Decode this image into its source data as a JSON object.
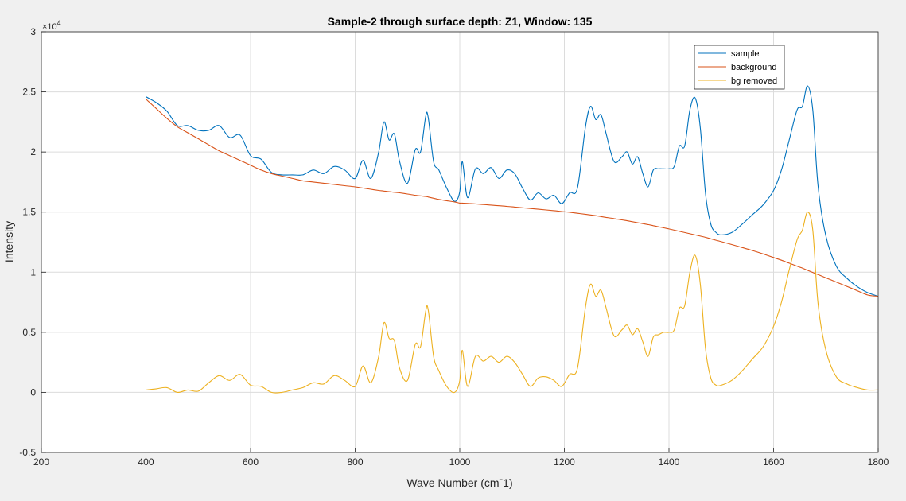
{
  "chart_data": {
    "type": "line",
    "title": "Sample-2 through surface depth: Z1, Window: 135",
    "xlabel": "Wave Number (cmˉ1)",
    "ylabel": "Intensity",
    "y_exponent_label": "×10",
    "y_exponent_power": "4",
    "xlim": [
      200,
      1800
    ],
    "ylim": [
      -0.5,
      3
    ],
    "x_ticks": [
      200,
      400,
      600,
      800,
      1000,
      1200,
      1400,
      1600,
      1800
    ],
    "x_tick_labels": [
      "200",
      "400",
      "600",
      "800",
      "1000",
      "1200",
      "1400",
      "1600",
      "1800"
    ],
    "y_ticks": [
      -0.5,
      0,
      0.5,
      1,
      1.5,
      2,
      2.5,
      3
    ],
    "y_tick_labels": [
      "-0.5",
      "0",
      "0.5",
      "1",
      "1.5",
      "2",
      "2.5",
      "3"
    ],
    "grid": true,
    "legend_position": "top-right",
    "x": [
      400,
      420,
      440,
      460,
      480,
      500,
      520,
      540,
      560,
      580,
      600,
      620,
      640,
      660,
      680,
      700,
      720,
      740,
      760,
      780,
      800,
      815,
      830,
      845,
      855,
      865,
      875,
      885,
      900,
      915,
      925,
      935,
      940,
      950,
      960,
      975,
      990,
      1000,
      1005,
      1015,
      1030,
      1045,
      1060,
      1075,
      1090,
      1105,
      1120,
      1135,
      1150,
      1165,
      1180,
      1195,
      1210,
      1225,
      1240,
      1250,
      1260,
      1270,
      1280,
      1295,
      1310,
      1320,
      1330,
      1340,
      1350,
      1360,
      1370,
      1380,
      1390,
      1400,
      1410,
      1420,
      1430,
      1440,
      1450,
      1460,
      1470,
      1480,
      1490,
      1500,
      1520,
      1540,
      1560,
      1580,
      1600,
      1615,
      1630,
      1645,
      1655,
      1665,
      1675,
      1685,
      1700,
      1720,
      1740,
      1760,
      1780,
      1800
    ],
    "series": [
      {
        "name": "sample",
        "color": "#0072bd",
        "values": [
          2.46,
          2.41,
          2.34,
          2.22,
          2.22,
          2.18,
          2.18,
          2.22,
          2.12,
          2.14,
          1.97,
          1.94,
          1.83,
          1.81,
          1.81,
          1.81,
          1.85,
          1.82,
          1.88,
          1.85,
          1.78,
          1.93,
          1.78,
          2.0,
          2.25,
          2.1,
          2.15,
          1.92,
          1.74,
          2.02,
          2.0,
          2.3,
          2.28,
          1.92,
          1.85,
          1.7,
          1.59,
          1.67,
          1.92,
          1.62,
          1.86,
          1.82,
          1.87,
          1.78,
          1.85,
          1.82,
          1.7,
          1.6,
          1.66,
          1.61,
          1.64,
          1.57,
          1.66,
          1.7,
          2.2,
          2.38,
          2.27,
          2.31,
          2.15,
          1.92,
          1.96,
          2.0,
          1.9,
          1.96,
          1.82,
          1.71,
          1.85,
          1.86,
          1.86,
          1.86,
          1.88,
          2.05,
          2.05,
          2.35,
          2.45,
          2.2,
          1.65,
          1.4,
          1.33,
          1.31,
          1.33,
          1.4,
          1.48,
          1.56,
          1.68,
          1.85,
          2.1,
          2.35,
          2.38,
          2.55,
          2.35,
          1.72,
          1.3,
          1.05,
          0.95,
          0.88,
          0.83,
          0.8
        ]
      },
      {
        "name": "background",
        "color": "#d95319",
        "values": [
          2.44,
          2.36,
          2.28,
          2.21,
          2.16,
          2.11,
          2.06,
          2.01,
          1.97,
          1.93,
          1.89,
          1.85,
          1.82,
          1.8,
          1.78,
          1.76,
          1.75,
          1.74,
          1.73,
          1.72,
          1.71,
          1.7,
          1.69,
          1.68,
          1.675,
          1.67,
          1.665,
          1.66,
          1.65,
          1.64,
          1.635,
          1.63,
          1.625,
          1.615,
          1.605,
          1.595,
          1.585,
          1.575,
          1.575,
          1.572,
          1.568,
          1.563,
          1.558,
          1.553,
          1.548,
          1.542,
          1.536,
          1.53,
          1.524,
          1.518,
          1.512,
          1.505,
          1.498,
          1.49,
          1.482,
          1.476,
          1.47,
          1.463,
          1.456,
          1.446,
          1.435,
          1.428,
          1.42,
          1.412,
          1.404,
          1.396,
          1.387,
          1.378,
          1.369,
          1.36,
          1.35,
          1.34,
          1.33,
          1.32,
          1.31,
          1.3,
          1.29,
          1.278,
          1.266,
          1.254,
          1.23,
          1.205,
          1.18,
          1.152,
          1.122,
          1.1,
          1.075,
          1.05,
          1.034,
          1.016,
          0.998,
          0.98,
          0.953,
          0.918,
          0.882,
          0.846,
          0.81,
          0.8
        ]
      },
      {
        "name": "bg removed",
        "color": "#edb120",
        "values": [
          0.02,
          0.03,
          0.04,
          0.0,
          0.02,
          0.01,
          0.08,
          0.14,
          0.1,
          0.15,
          0.06,
          0.05,
          0.0,
          0.0,
          0.02,
          0.04,
          0.08,
          0.07,
          0.14,
          0.1,
          0.05,
          0.22,
          0.08,
          0.3,
          0.58,
          0.45,
          0.43,
          0.2,
          0.1,
          0.4,
          0.38,
          0.68,
          0.68,
          0.3,
          0.18,
          0.05,
          0.0,
          0.1,
          0.35,
          0.05,
          0.3,
          0.26,
          0.3,
          0.25,
          0.3,
          0.25,
          0.15,
          0.05,
          0.12,
          0.13,
          0.1,
          0.05,
          0.15,
          0.2,
          0.7,
          0.9,
          0.8,
          0.85,
          0.7,
          0.47,
          0.52,
          0.56,
          0.48,
          0.53,
          0.42,
          0.3,
          0.46,
          0.48,
          0.5,
          0.5,
          0.52,
          0.7,
          0.72,
          1.0,
          1.14,
          0.9,
          0.36,
          0.12,
          0.06,
          0.06,
          0.1,
          0.18,
          0.28,
          0.38,
          0.55,
          0.75,
          1.02,
          1.27,
          1.35,
          1.5,
          1.35,
          0.74,
          0.35,
          0.13,
          0.07,
          0.04,
          0.02,
          0.02
        ]
      }
    ]
  }
}
